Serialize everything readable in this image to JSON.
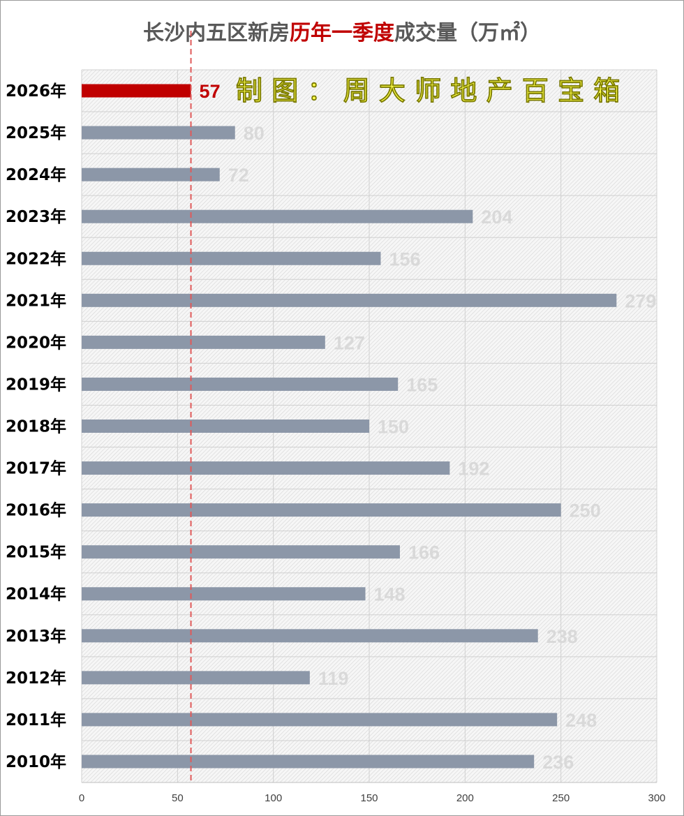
{
  "chart_data": {
    "type": "bar",
    "orientation": "horizontal",
    "title_parts": [
      {
        "text": "长沙内五区新房",
        "highlight": false
      },
      {
        "text": "历年一季度",
        "highlight": true
      },
      {
        "text": "成交量（万㎡）",
        "highlight": false
      }
    ],
    "watermark": "制 图 ： 周 大 师 地 产 百 宝 箱",
    "categories": [
      "2026年",
      "2025年",
      "2024年",
      "2023年",
      "2022年",
      "2021年",
      "2020年",
      "2019年",
      "2018年",
      "2017年",
      "2016年",
      "2015年",
      "2014年",
      "2013年",
      "2012年",
      "2011年",
      "2010年"
    ],
    "values": [
      57,
      80,
      72,
      204,
      156,
      279,
      127,
      165,
      150,
      192,
      250,
      166,
      148,
      238,
      119,
      248,
      236
    ],
    "highlight_index": 0,
    "reference_line": 57,
    "xlim": [
      0,
      300
    ],
    "xticks": [
      0,
      50,
      100,
      150,
      200,
      250,
      300
    ],
    "grid": true,
    "colors": {
      "bar": "#8c97a8",
      "highlight_bar": "#c00000",
      "value_label": "#d9d9d9",
      "highlight_label": "#c00000",
      "reference_line": "#e05a5a",
      "watermark": "#ffff4d"
    }
  }
}
